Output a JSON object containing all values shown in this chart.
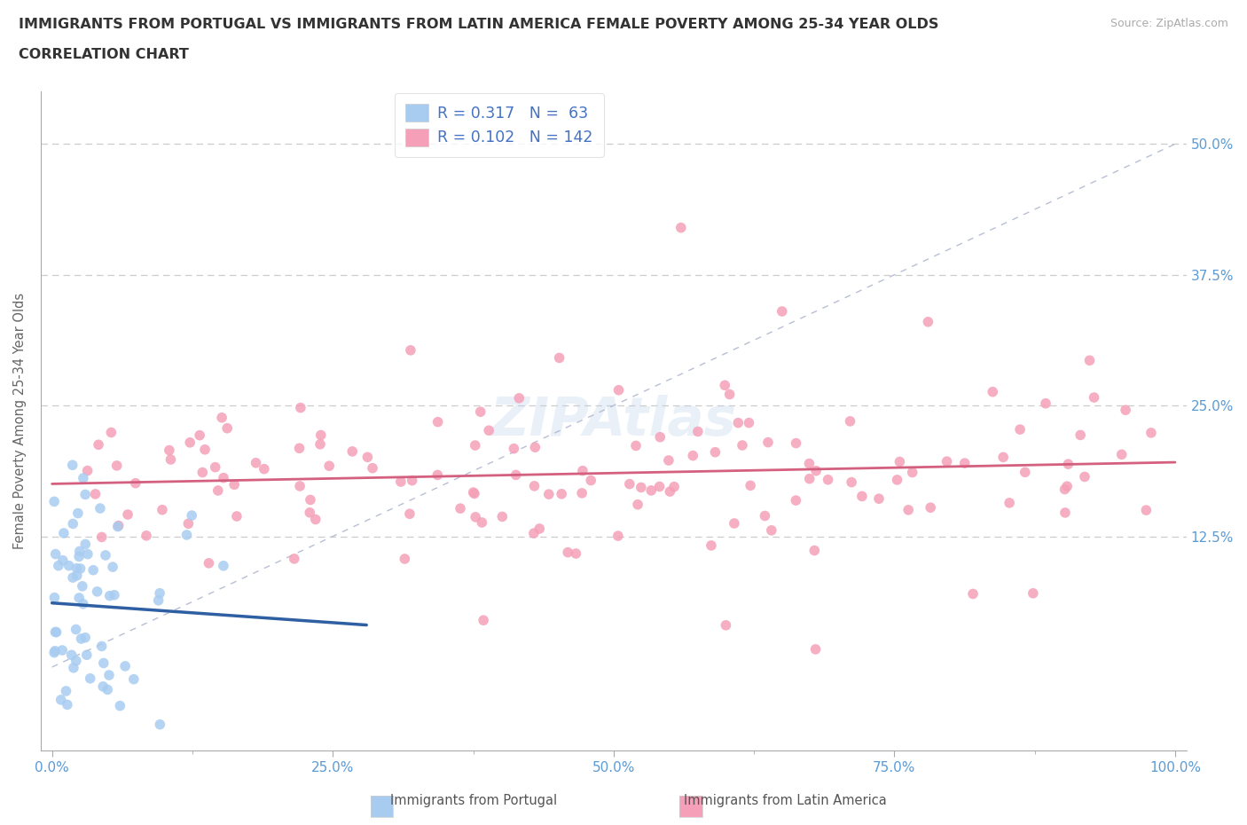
{
  "title_line1": "IMMIGRANTS FROM PORTUGAL VS IMMIGRANTS FROM LATIN AMERICA FEMALE POVERTY AMONG 25-34 YEAR OLDS",
  "title_line2": "CORRELATION CHART",
  "source_text": "Source: ZipAtlas.com",
  "ylabel": "Female Poverty Among 25-34 Year Olds",
  "xlim": [
    -1,
    101
  ],
  "ylim": [
    -8,
    55
  ],
  "portugal_color": "#a8ccf0",
  "latin_color": "#f5a0b8",
  "portugal_R": 0.317,
  "portugal_N": 63,
  "latin_R": 0.102,
  "latin_N": 142,
  "legend_label_portugal": "Immigrants from Portugal",
  "legend_label_latin": "Immigrants from Latin America",
  "watermark_text": "ZIPAtlas",
  "title_fontsize": 11.5,
  "source_fontsize": 9,
  "tick_color": "#5b9bd5",
  "title_color": "#333333",
  "ylabel_color": "#666666",
  "trend_color_portugal": "#2e5fa3",
  "trend_color_latin": "#d46080",
  "ref_line_color": "#b0b8d0",
  "grid_color": "#cccccc",
  "legend_text_color": "#4472c4"
}
